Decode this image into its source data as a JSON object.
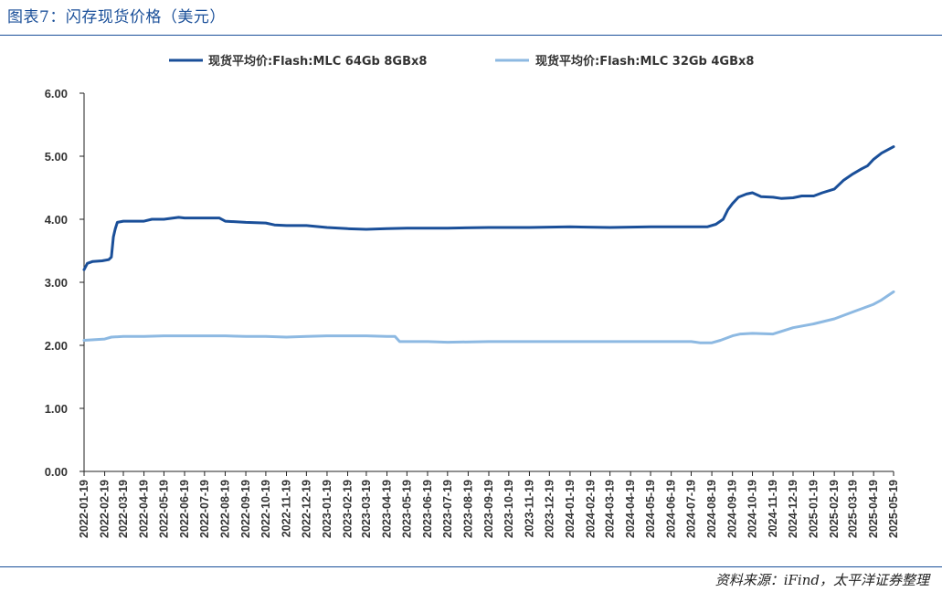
{
  "figure": {
    "title": "图表7：闪存现货价格（美元）",
    "source": "资料来源：iFind，太平洋证券整理"
  },
  "colors": {
    "series1": "#1a4f99",
    "series2": "#8db9e2",
    "axis": "#222222",
    "rule": "#1a4f99"
  },
  "chart_data": {
    "type": "line",
    "title": "",
    "xlabel": "",
    "ylabel": "",
    "ylim": [
      0,
      6
    ],
    "yticks": [
      "0.00",
      "1.00",
      "2.00",
      "3.00",
      "4.00",
      "5.00",
      "6.00"
    ],
    "xticks": [
      "2022-01-19",
      "2022-02-19",
      "2022-03-19",
      "2022-04-19",
      "2022-05-19",
      "2022-06-19",
      "2022-07-19",
      "2022-08-19",
      "2022-09-19",
      "2022-10-19",
      "2022-11-19",
      "2022-12-19",
      "2023-01-19",
      "2023-02-19",
      "2023-03-19",
      "2023-04-19",
      "2023-05-19",
      "2023-06-19",
      "2023-07-19",
      "2023-08-19",
      "2023-09-19",
      "2023-10-19",
      "2023-11-19",
      "2023-12-19",
      "2024-01-19",
      "2024-02-19",
      "2024-03-19",
      "2024-04-19",
      "2024-05-19",
      "2024-06-19",
      "2024-07-19",
      "2024-08-19",
      "2024-09-19",
      "2024-10-19",
      "2024-11-19",
      "2024-12-19",
      "2025-01-19",
      "2025-02-19",
      "2025-03-19",
      "2025-04-19",
      "2025-05-19"
    ],
    "grid": false,
    "legend": "top",
    "series": [
      {
        "name": "现货平均价:Flash:MLC 64Gb 8GBx8",
        "points": [
          [
            "2022-01-19",
            3.2
          ],
          [
            "2022-01-24",
            3.3
          ],
          [
            "2022-02-01",
            3.33
          ],
          [
            "2022-02-15",
            3.34
          ],
          [
            "2022-02-25",
            3.36
          ],
          [
            "2022-03-01",
            3.4
          ],
          [
            "2022-03-04",
            3.72
          ],
          [
            "2022-03-07",
            3.85
          ],
          [
            "2022-03-10",
            3.95
          ],
          [
            "2022-03-19",
            3.97
          ],
          [
            "2022-04-19",
            3.97
          ],
          [
            "2022-05-01",
            4.0
          ],
          [
            "2022-05-19",
            4.0
          ],
          [
            "2022-06-10",
            4.03
          ],
          [
            "2022-06-19",
            4.02
          ],
          [
            "2022-07-19",
            4.02
          ],
          [
            "2022-08-10",
            4.02
          ],
          [
            "2022-08-19",
            3.97
          ],
          [
            "2022-09-19",
            3.95
          ],
          [
            "2022-10-19",
            3.94
          ],
          [
            "2022-11-01",
            3.91
          ],
          [
            "2022-11-19",
            3.9
          ],
          [
            "2022-12-19",
            3.9
          ],
          [
            "2023-01-19",
            3.87
          ],
          [
            "2023-02-19",
            3.85
          ],
          [
            "2023-03-19",
            3.84
          ],
          [
            "2023-04-19",
            3.85
          ],
          [
            "2023-05-19",
            3.86
          ],
          [
            "2023-07-19",
            3.86
          ],
          [
            "2023-09-19",
            3.87
          ],
          [
            "2023-11-19",
            3.87
          ],
          [
            "2024-01-19",
            3.88
          ],
          [
            "2024-03-19",
            3.87
          ],
          [
            "2024-05-19",
            3.88
          ],
          [
            "2024-07-19",
            3.88
          ],
          [
            "2024-08-12",
            3.88
          ],
          [
            "2024-08-25",
            3.92
          ],
          [
            "2024-09-05",
            4.0
          ],
          [
            "2024-09-12",
            4.15
          ],
          [
            "2024-09-19",
            4.25
          ],
          [
            "2024-09-28",
            4.35
          ],
          [
            "2024-10-10",
            4.4
          ],
          [
            "2024-10-19",
            4.42
          ],
          [
            "2024-11-01",
            4.36
          ],
          [
            "2024-11-19",
            4.35
          ],
          [
            "2024-12-01",
            4.33
          ],
          [
            "2024-12-19",
            4.34
          ],
          [
            "2025-01-01",
            4.37
          ],
          [
            "2025-01-19",
            4.37
          ],
          [
            "2025-02-01",
            4.42
          ],
          [
            "2025-02-19",
            4.48
          ],
          [
            "2025-03-05",
            4.62
          ],
          [
            "2025-03-19",
            4.72
          ],
          [
            "2025-04-01",
            4.8
          ],
          [
            "2025-04-10",
            4.85
          ],
          [
            "2025-04-19",
            4.95
          ],
          [
            "2025-05-01",
            5.05
          ],
          [
            "2025-05-19",
            5.15
          ]
        ]
      },
      {
        "name": "现货平均价:Flash:MLC 32Gb 4GBx8",
        "points": [
          [
            "2022-01-19",
            2.08
          ],
          [
            "2022-02-19",
            2.1
          ],
          [
            "2022-03-01",
            2.13
          ],
          [
            "2022-03-19",
            2.14
          ],
          [
            "2022-04-19",
            2.14
          ],
          [
            "2022-05-19",
            2.15
          ],
          [
            "2022-06-19",
            2.15
          ],
          [
            "2022-07-19",
            2.15
          ],
          [
            "2022-08-19",
            2.15
          ],
          [
            "2022-09-19",
            2.14
          ],
          [
            "2022-10-19",
            2.14
          ],
          [
            "2022-11-19",
            2.13
          ],
          [
            "2022-12-19",
            2.14
          ],
          [
            "2023-01-19",
            2.15
          ],
          [
            "2023-02-19",
            2.15
          ],
          [
            "2023-03-19",
            2.15
          ],
          [
            "2023-04-19",
            2.14
          ],
          [
            "2023-05-01",
            2.14
          ],
          [
            "2023-05-08",
            2.06
          ],
          [
            "2023-05-19",
            2.06
          ],
          [
            "2023-06-19",
            2.06
          ],
          [
            "2023-07-19",
            2.05
          ],
          [
            "2023-09-19",
            2.06
          ],
          [
            "2023-11-19",
            2.06
          ],
          [
            "2024-01-19",
            2.06
          ],
          [
            "2024-03-19",
            2.06
          ],
          [
            "2024-05-19",
            2.06
          ],
          [
            "2024-07-19",
            2.06
          ],
          [
            "2024-08-01",
            2.04
          ],
          [
            "2024-08-19",
            2.04
          ],
          [
            "2024-09-01",
            2.08
          ],
          [
            "2024-09-19",
            2.15
          ],
          [
            "2024-10-01",
            2.18
          ],
          [
            "2024-10-19",
            2.19
          ],
          [
            "2024-11-19",
            2.18
          ],
          [
            "2024-12-01",
            2.22
          ],
          [
            "2024-12-19",
            2.28
          ],
          [
            "2025-01-19",
            2.34
          ],
          [
            "2025-02-19",
            2.42
          ],
          [
            "2025-03-19",
            2.53
          ],
          [
            "2025-04-19",
            2.65
          ],
          [
            "2025-05-01",
            2.72
          ],
          [
            "2025-05-19",
            2.85
          ]
        ]
      }
    ]
  }
}
